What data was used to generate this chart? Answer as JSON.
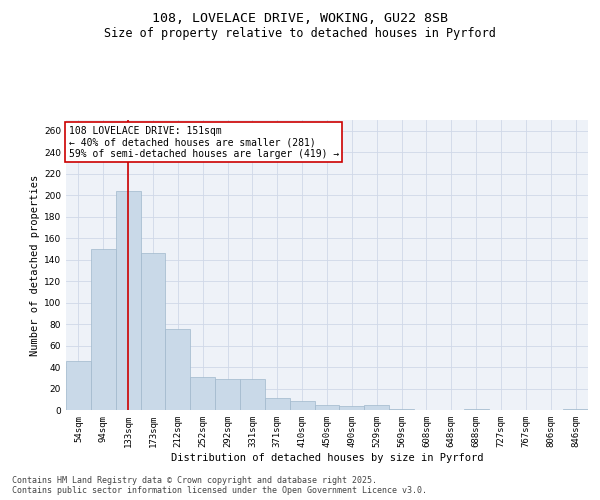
{
  "title_line1": "108, LOVELACE DRIVE, WOKING, GU22 8SB",
  "title_line2": "Size of property relative to detached houses in Pyrford",
  "xlabel": "Distribution of detached houses by size in Pyrford",
  "ylabel": "Number of detached properties",
  "categories": [
    "54sqm",
    "94sqm",
    "133sqm",
    "173sqm",
    "212sqm",
    "252sqm",
    "292sqm",
    "331sqm",
    "371sqm",
    "410sqm",
    "450sqm",
    "490sqm",
    "529sqm",
    "569sqm",
    "608sqm",
    "648sqm",
    "688sqm",
    "727sqm",
    "767sqm",
    "806sqm",
    "846sqm"
  ],
  "values": [
    46,
    150,
    204,
    146,
    75,
    31,
    29,
    29,
    11,
    8,
    5,
    4,
    5,
    1,
    0,
    0,
    1,
    0,
    0,
    0,
    1
  ],
  "bar_color": "#c9d9e8",
  "bar_edgecolor": "#a0b8cc",
  "redline_index": 2,
  "annotation_text": "108 LOVELACE DRIVE: 151sqm\n← 40% of detached houses are smaller (281)\n59% of semi-detached houses are larger (419) →",
  "annotation_box_color": "#ffffff",
  "annotation_box_edgecolor": "#cc0000",
  "redline_color": "#cc0000",
  "ylim": [
    0,
    270
  ],
  "yticks": [
    0,
    20,
    40,
    60,
    80,
    100,
    120,
    140,
    160,
    180,
    200,
    220,
    240,
    260
  ],
  "grid_color": "#d0d8e8",
  "background_color": "#eef2f8",
  "footer_line1": "Contains HM Land Registry data © Crown copyright and database right 2025.",
  "footer_line2": "Contains public sector information licensed under the Open Government Licence v3.0.",
  "title_fontsize": 9.5,
  "subtitle_fontsize": 8.5,
  "axis_label_fontsize": 7.5,
  "tick_fontsize": 6.5,
  "annotation_fontsize": 7,
  "footer_fontsize": 6
}
